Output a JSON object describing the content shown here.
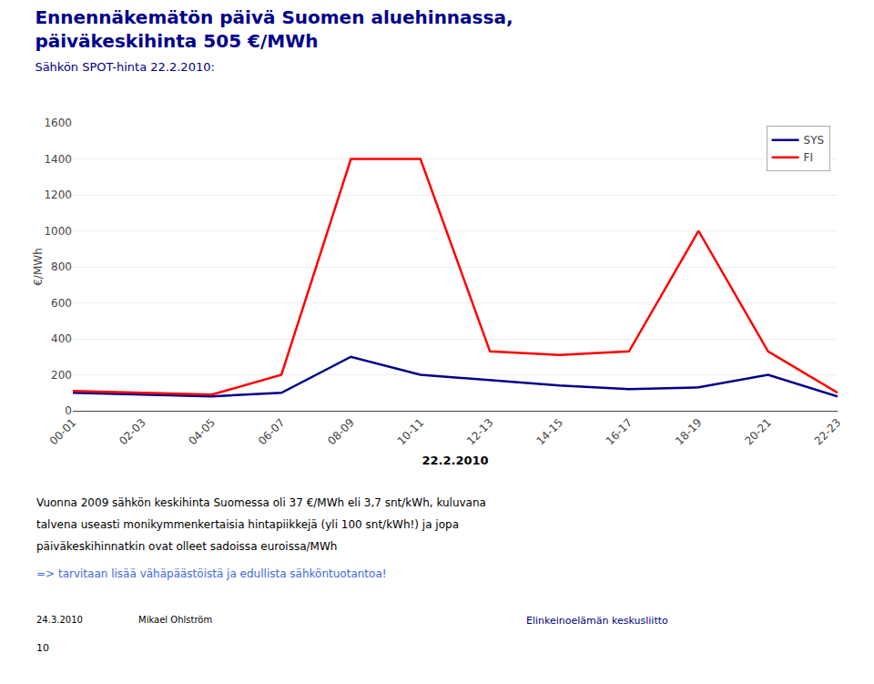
{
  "chart_data": {
    "type": "line",
    "title": "Ennennäkemätön päivä Suomen aluehinnassa,\npäiväkeskihinta 505 €/MWh",
    "subtitle": "Sähkön SPOT-hinta 22.2.2010:",
    "x_label": "22.2.2010",
    "y_label": "€/MWh",
    "categories": [
      "00-01",
      "02-03",
      "04-05",
      "06-07",
      "08-09",
      "10-11",
      "12-13",
      "14-15",
      "16-17",
      "18-19",
      "20-21",
      "22-23"
    ],
    "series": [
      {
        "name": "SYS",
        "color": "#00008B",
        "values": [
          100,
          90,
          80,
          100,
          300,
          200,
          170,
          140,
          120,
          130,
          200,
          80
        ]
      },
      {
        "name": "FI",
        "color": "#FF0000",
        "values": [
          110,
          100,
          90,
          200,
          1400,
          1400,
          330,
          310,
          330,
          1000,
          330,
          100
        ]
      }
    ],
    "ylim": [
      0,
      1600
    ],
    "yticks": [
      0,
      200,
      400,
      600,
      800,
      1000,
      1200,
      1400,
      1600
    ],
    "grid": true,
    "legend": "upper right",
    "annotations": [
      {
        "text": "Vuonna 2009 sähkön keskihinta Suomessa oli 37 €/MWh eli 3,7 snt/kWh, kuluvana",
        "color": "#000000"
      },
      {
        "text": "talvena useasti monikymmenkertaisia hintapiikkejä (yli 100 snt/kWh!) ja jopa",
        "color": "#000000"
      },
      {
        "text": "päiväkeskihinnatkin ovat olleet sadoissa euroissa/MWh",
        "color": "#000000"
      },
      {
        "text": "=> tarvitaan lisää vähäpäästöistä ja edullista sähköntuotantoa!",
        "color": "#4169E1"
      },
      {
        "text": "24.3.2010",
        "color": "#000000"
      },
      {
        "text": "Mikael Ohlström",
        "color": "#000000"
      },
      {
        "text": "Elinkeinoelämän keskusliitto",
        "color": "#000080"
      },
      {
        "text": "10",
        "color": "#000000"
      }
    ]
  }
}
